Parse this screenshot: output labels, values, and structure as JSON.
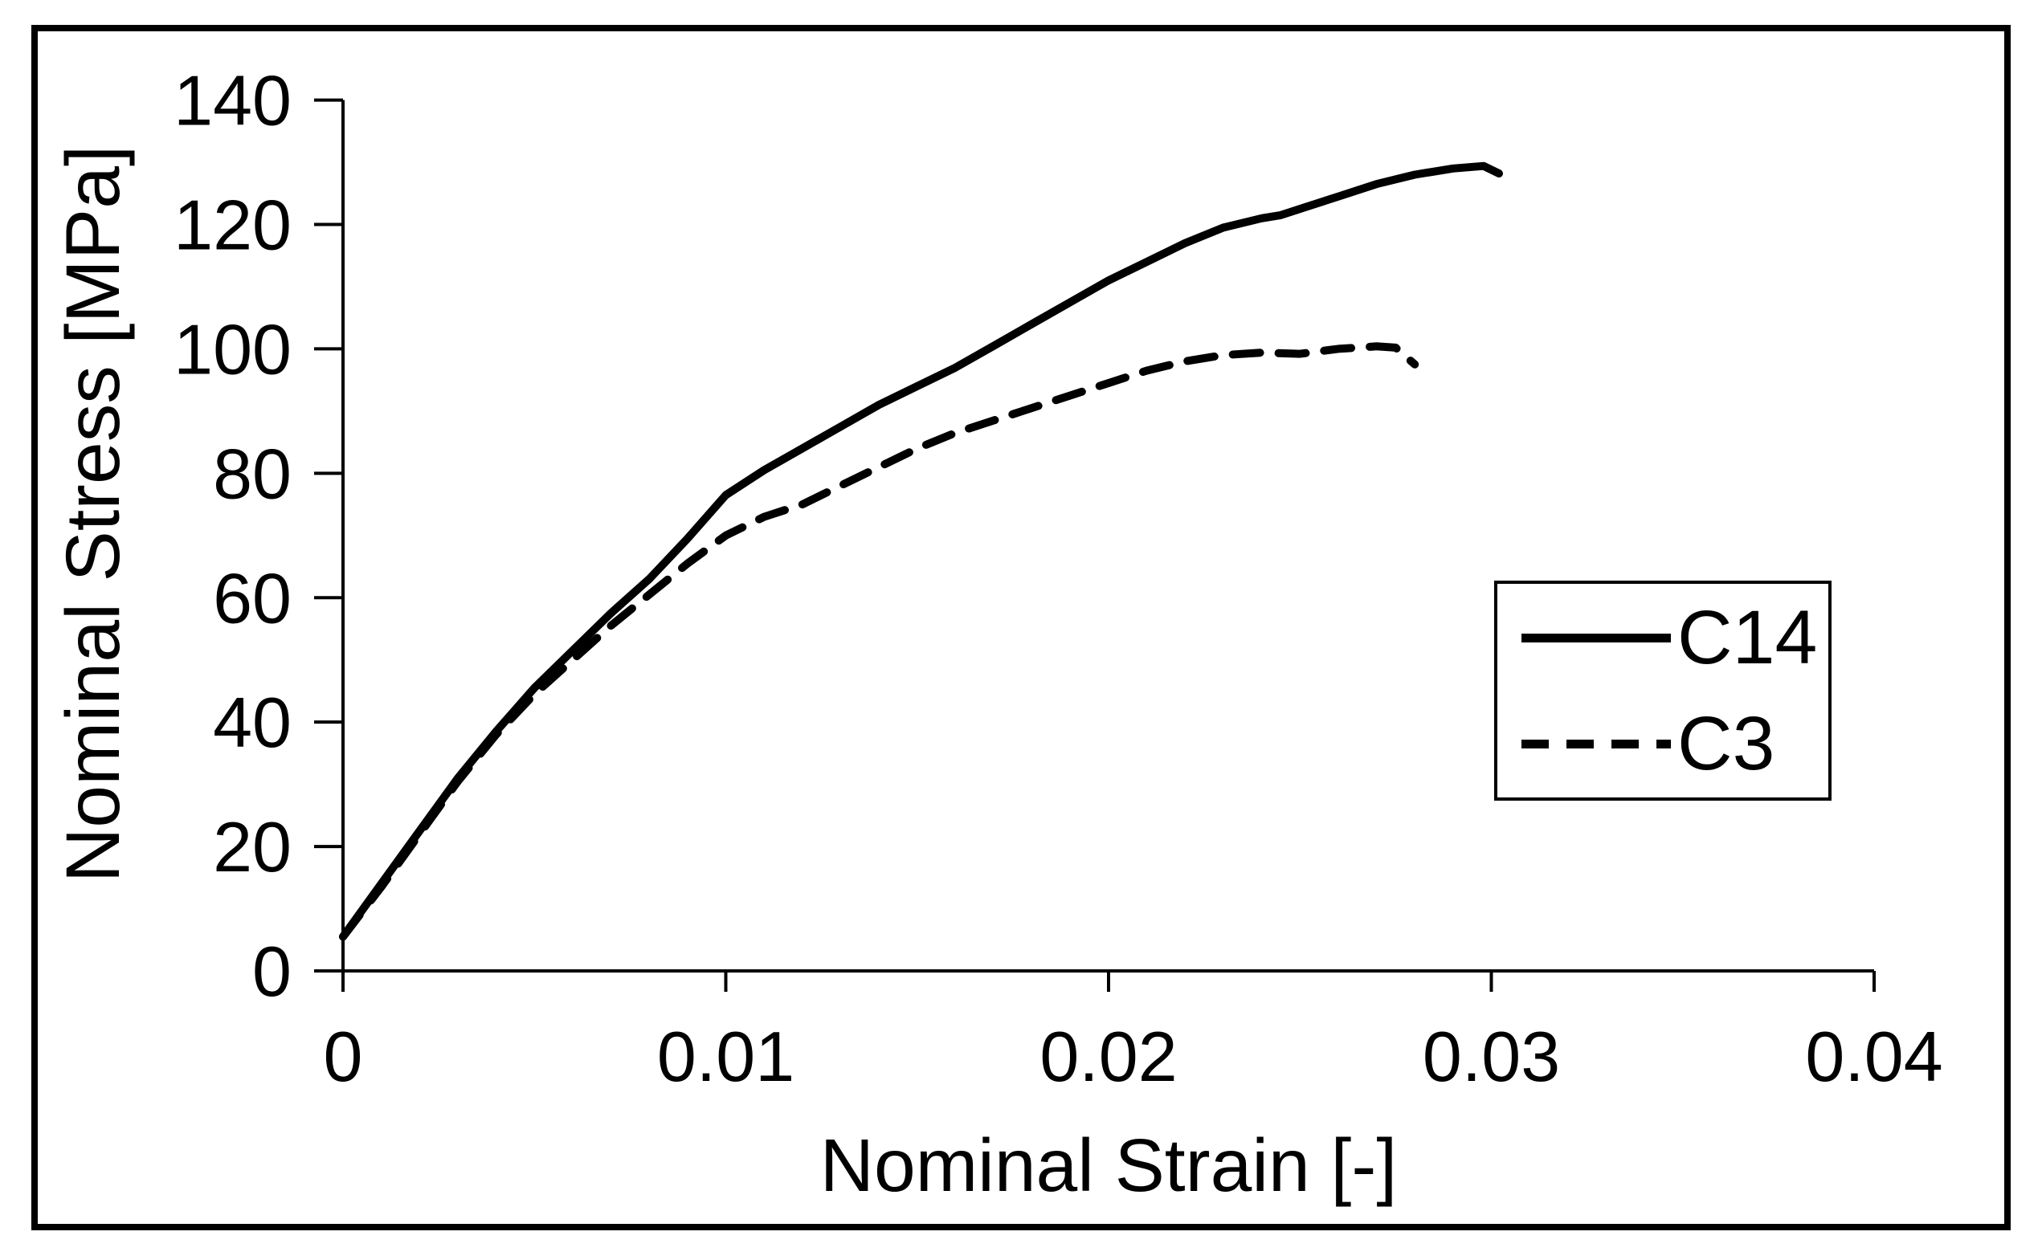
{
  "chart_data": {
    "type": "line",
    "title": "",
    "xlabel": "Nominal Strain [-]",
    "ylabel": "Nominal Stress [MPa]",
    "xlim": [
      0,
      0.04
    ],
    "ylim": [
      0,
      140
    ],
    "x_ticks": [
      0,
      0.01,
      0.02,
      0.03,
      0.04
    ],
    "x_tick_labels": [
      "0",
      "0.01",
      "0.02",
      "0.03",
      "0.04"
    ],
    "y_ticks": [
      0,
      20,
      40,
      60,
      80,
      100,
      120,
      140
    ],
    "y_tick_labels": [
      "0",
      "20",
      "40",
      "60",
      "80",
      "100",
      "120",
      "140"
    ],
    "grid": false,
    "legend_position": "right-middle",
    "series": [
      {
        "name": "C14",
        "style": "solid",
        "color": "#000000",
        "points": [
          [
            0,
            5.5
          ],
          [
            0.001,
            14
          ],
          [
            0.002,
            22.5
          ],
          [
            0.003,
            31
          ],
          [
            0.004,
            38.5
          ],
          [
            0.005,
            45.5
          ],
          [
            0.006,
            51.5
          ],
          [
            0.007,
            57.5
          ],
          [
            0.008,
            63
          ],
          [
            0.009,
            69.5
          ],
          [
            0.01,
            76.5
          ],
          [
            0.0105,
            78.5
          ],
          [
            0.011,
            80.5
          ],
          [
            0.012,
            84
          ],
          [
            0.013,
            87.5
          ],
          [
            0.014,
            91
          ],
          [
            0.015,
            94
          ],
          [
            0.016,
            97
          ],
          [
            0.017,
            100.5
          ],
          [
            0.018,
            104
          ],
          [
            0.019,
            107.5
          ],
          [
            0.02,
            111
          ],
          [
            0.021,
            114
          ],
          [
            0.022,
            117
          ],
          [
            0.023,
            119.5
          ],
          [
            0.024,
            121
          ],
          [
            0.0245,
            121.5
          ],
          [
            0.025,
            122.5
          ],
          [
            0.026,
            124.5
          ],
          [
            0.027,
            126.5
          ],
          [
            0.028,
            128
          ],
          [
            0.029,
            129
          ],
          [
            0.0298,
            129.4
          ],
          [
            0.0302,
            128.2
          ]
        ]
      },
      {
        "name": "C3",
        "style": "dashed",
        "color": "#000000",
        "points": [
          [
            0,
            5.5
          ],
          [
            0.001,
            13.5
          ],
          [
            0.002,
            22
          ],
          [
            0.003,
            30.5
          ],
          [
            0.004,
            38
          ],
          [
            0.005,
            44.5
          ],
          [
            0.006,
            50
          ],
          [
            0.007,
            55.5
          ],
          [
            0.008,
            60.5
          ],
          [
            0.009,
            65.5
          ],
          [
            0.01,
            70
          ],
          [
            0.011,
            73
          ],
          [
            0.012,
            75
          ],
          [
            0.013,
            78
          ],
          [
            0.014,
            81
          ],
          [
            0.015,
            84
          ],
          [
            0.016,
            86.5
          ],
          [
            0.017,
            88.5
          ],
          [
            0.018,
            90.5
          ],
          [
            0.019,
            92.5
          ],
          [
            0.02,
            94.5
          ],
          [
            0.021,
            96.5
          ],
          [
            0.022,
            98
          ],
          [
            0.023,
            99
          ],
          [
            0.024,
            99.4
          ],
          [
            0.025,
            99.2
          ],
          [
            0.026,
            100
          ],
          [
            0.027,
            100.4
          ],
          [
            0.0275,
            100.2
          ],
          [
            0.028,
            97.5
          ]
        ]
      }
    ]
  },
  "legend": {
    "items": [
      {
        "label": "C14",
        "line_style": "solid"
      },
      {
        "label": "C3",
        "line_style": "dashed"
      }
    ]
  },
  "colors": {
    "stroke": "#000000",
    "background": "#ffffff",
    "frame": "#000000"
  }
}
